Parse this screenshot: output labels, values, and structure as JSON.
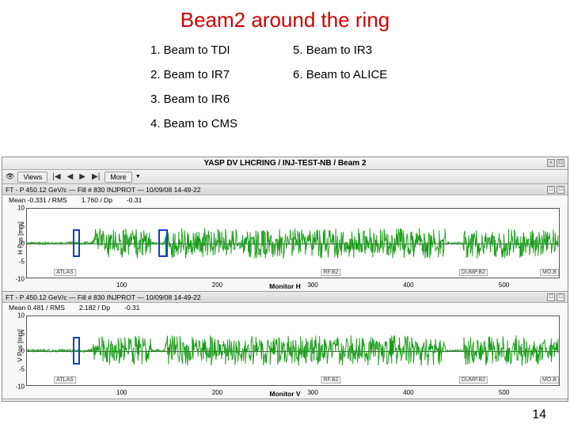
{
  "title": {
    "text": "Beam2 around the ring",
    "color": "#cc0000",
    "font_size": 26
  },
  "lists": {
    "left": [
      {
        "n": "1.",
        "t": "Beam to TDI"
      },
      {
        "n": "2.",
        "t": "Beam to IR7"
      },
      {
        "n": "3.",
        "t": "Beam to IR6"
      },
      {
        "n": "4.",
        "t": "Beam to CMS"
      }
    ],
    "right": [
      {
        "n": "5.",
        "t": "Beam to IR3"
      },
      {
        "n": "6.",
        "t": "Beam to ALICE"
      }
    ]
  },
  "app": {
    "window_title": "YASP DV LHCRING / INJ-TEST-NB / Beam 2",
    "toolbar": {
      "views": "Views",
      "more": "More"
    },
    "panel_header": "P 450.12 GeV/c — Fill # 830 INJPROT — 10/09/08 14-49-22",
    "panels": [
      {
        "stats": {
          "mean": "Mean  -0.331 / RMS",
          "rms": "1.760 / Dp",
          "dp": "-0.31"
        },
        "ylabel": "H Pos [mm]",
        "xlabel": "Monitor H",
        "ylim": [
          -10,
          10
        ],
        "yticks": [
          -10,
          -5,
          0,
          5,
          10
        ],
        "xlim": [
          0,
          560
        ],
        "xticks": [
          100,
          200,
          300,
          400,
          500
        ],
        "series_color": "#1a9c1a",
        "regions": [
          {
            "x": 40,
            "label": "ATLAS"
          },
          {
            "x": 320,
            "label": "RF.B2"
          },
          {
            "x": 470,
            "label": "DUMP.B2"
          },
          {
            "x": 550,
            "label": "MO.B"
          }
        ],
        "blue_boxes": [
          {
            "x": 48,
            "w": 8
          },
          {
            "x": 138,
            "w": 10
          }
        ],
        "trace_seed": 3
      },
      {
        "stats": {
          "mean": "Mean  0.481 / RMS",
          "rms": "2.182 / Dp",
          "dp": "-0.31"
        },
        "ylabel": "V Pos [mm]",
        "xlabel": "Monitor V",
        "ylim": [
          -10,
          10
        ],
        "yticks": [
          -10,
          -5,
          0,
          5,
          10
        ],
        "xlim": [
          0,
          560
        ],
        "xticks": [
          100,
          200,
          300,
          400,
          500
        ],
        "series_color": "#1a9c1a",
        "regions": [
          {
            "x": 40,
            "label": "ATLAS"
          },
          {
            "x": 320,
            "label": "RF.B2"
          },
          {
            "x": 470,
            "label": "DUMP.B2"
          },
          {
            "x": 550,
            "label": "MO.B"
          }
        ],
        "blue_boxes": [
          {
            "x": 48,
            "w": 8
          }
        ],
        "trace_seed": 7
      }
    ]
  },
  "page_number": "14"
}
